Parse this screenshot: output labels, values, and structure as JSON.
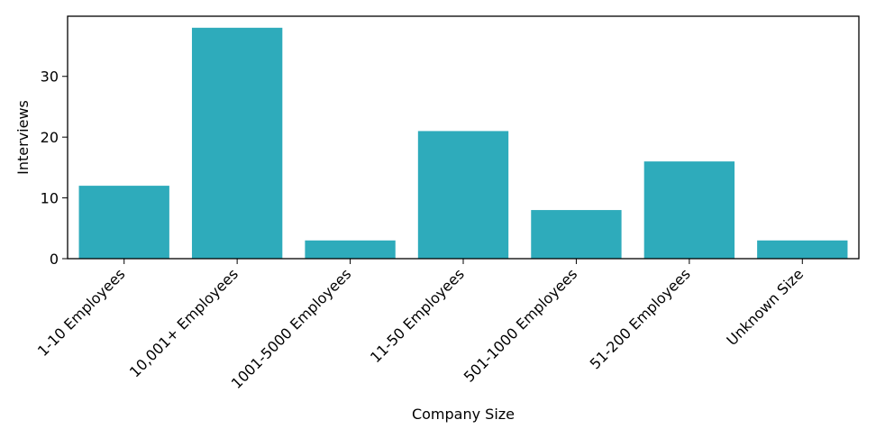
{
  "chart_data": {
    "type": "bar",
    "title": "",
    "xlabel": "Company Size",
    "ylabel": "Interviews",
    "categories": [
      "1-10 Employees",
      "10,001+ Employees",
      "1001-5000 Employees",
      "11-50 Employees",
      "501-1000 Employees",
      "51-200 Employees",
      "Unknown Size"
    ],
    "values": [
      12,
      38,
      3,
      21,
      8,
      16,
      3
    ],
    "ylim": [
      0,
      39.9
    ],
    "yticks": [
      0,
      10,
      20,
      30
    ],
    "grid": false,
    "bar_color": "#2eabbb"
  }
}
